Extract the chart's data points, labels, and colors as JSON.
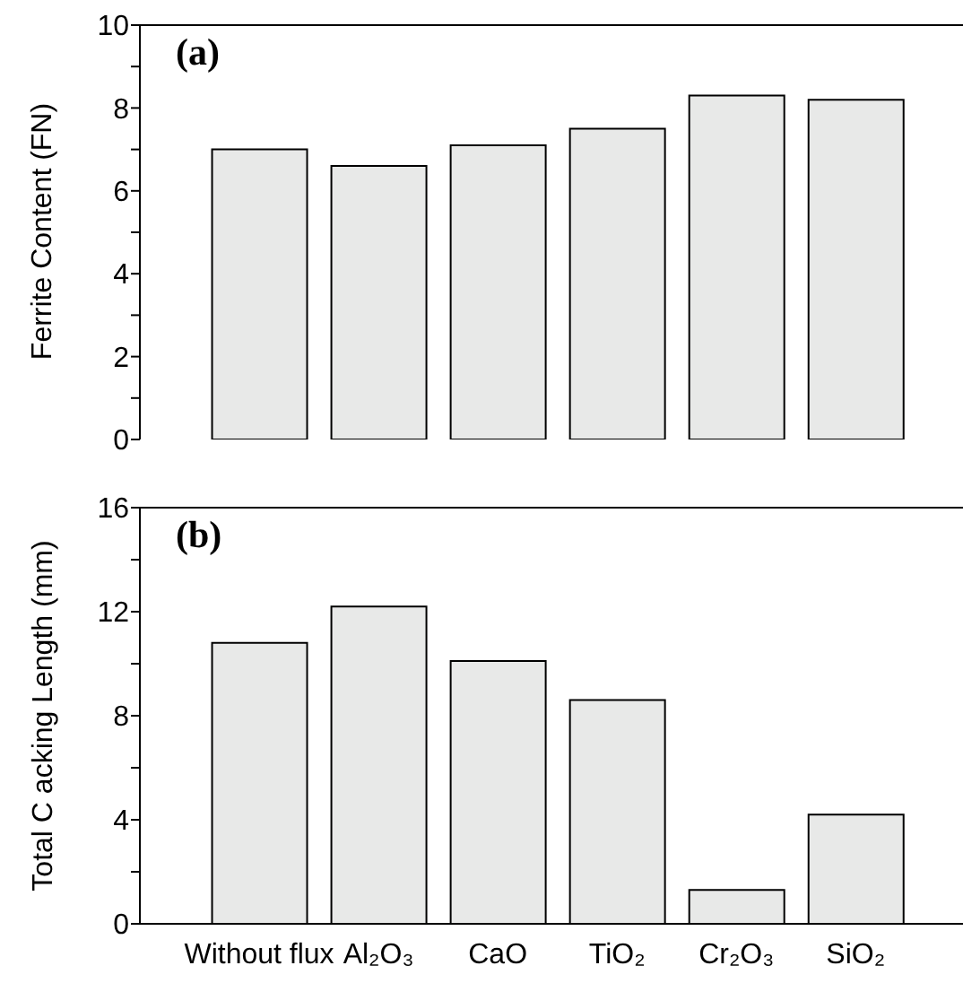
{
  "chart_data": [
    {
      "type": "bar",
      "annotations": [
        "(a)"
      ],
      "values": [
        7.0,
        6.6,
        7.1,
        7.5,
        8.3,
        8.2
      ],
      "color": "#e8e9e8",
      "ylabel": "Ferrite Content (FN)",
      "ylim": [
        0,
        10
      ],
      "yticks": [
        0,
        {
          "value": 1,
          "label": null
        },
        2,
        {
          "value": 3,
          "label": null
        },
        4,
        {
          "value": 5,
          "label": null
        },
        6,
        {
          "value": 7,
          "label": null
        },
        8,
        {
          "value": 9,
          "label": null
        },
        10
      ],
      "tick_labels": "y"
    },
    {
      "type": "bar",
      "annotations": [
        "(b)"
      ],
      "categories": [
        "Without flux",
        "Al₂O₃",
        "CaO",
        "TiO₂",
        "Cr₂O₃",
        "SiO₂"
      ],
      "values": [
        10.8,
        12.2,
        10.1,
        8.6,
        1.3,
        4.2
      ],
      "color": "#e8e9e8",
      "ylabel": "Total C acking Length (mm)",
      "ylim": [
        0,
        16
      ],
      "yticks": [
        0,
        {
          "value": 2,
          "label": null
        },
        4,
        {
          "value": 6,
          "label": null
        },
        8,
        {
          "value": 10,
          "label": null
        },
        12,
        {
          "value": 14,
          "label": null
        },
        16
      ]
    }
  ]
}
